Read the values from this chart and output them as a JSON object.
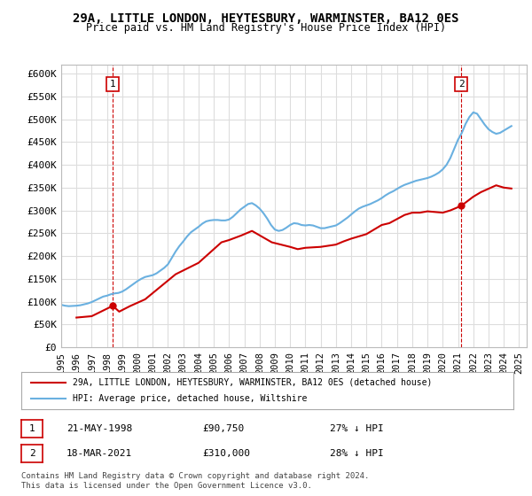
{
  "title": "29A, LITTLE LONDON, HEYTESBURY, WARMINSTER, BA12 0ES",
  "subtitle": "Price paid vs. HM Land Registry's House Price Index (HPI)",
  "ylabel_ticks": [
    "£0",
    "£50K",
    "£100K",
    "£150K",
    "£200K",
    "£250K",
    "£300K",
    "£350K",
    "£400K",
    "£450K",
    "£500K",
    "£550K",
    "£600K"
  ],
  "ytick_values": [
    0,
    50000,
    100000,
    150000,
    200000,
    250000,
    300000,
    350000,
    400000,
    450000,
    500000,
    550000,
    600000
  ],
  "ylim": [
    0,
    620000
  ],
  "xlim_start": 1995.0,
  "xlim_end": 2025.5,
  "xtick_years": [
    1995,
    1996,
    1997,
    1998,
    1999,
    2000,
    2001,
    2002,
    2003,
    2004,
    2005,
    2006,
    2007,
    2008,
    2009,
    2010,
    2011,
    2012,
    2013,
    2014,
    2015,
    2016,
    2017,
    2018,
    2019,
    2020,
    2021,
    2022,
    2023,
    2024,
    2025
  ],
  "hpi_line_color": "#6ab0e0",
  "price_line_color": "#cc0000",
  "dashed_marker_color": "#cc0000",
  "annotation_box_color": "#cc0000",
  "grid_color": "#dddddd",
  "bg_color": "#ffffff",
  "legend_border_color": "#aaaaaa",
  "purchase1_x": 1998.38,
  "purchase1_y": 90750,
  "purchase1_label": "1",
  "purchase2_x": 2021.21,
  "purchase2_y": 310000,
  "purchase2_label": "2",
  "note1_date": "21-MAY-1998",
  "note1_price": "£90,750",
  "note1_hpi": "27% ↓ HPI",
  "note2_date": "18-MAR-2021",
  "note2_price": "£310,000",
  "note2_hpi": "28% ↓ HPI",
  "legend_line1": "29A, LITTLE LONDON, HEYTESBURY, WARMINSTER, BA12 0ES (detached house)",
  "legend_line2": "HPI: Average price, detached house, Wiltshire",
  "footnote": "Contains HM Land Registry data © Crown copyright and database right 2024.\nThis data is licensed under the Open Government Licence v3.0.",
  "hpi_data_x": [
    1995.0,
    1995.25,
    1995.5,
    1995.75,
    1996.0,
    1996.25,
    1996.5,
    1996.75,
    1997.0,
    1997.25,
    1997.5,
    1997.75,
    1998.0,
    1998.25,
    1998.5,
    1998.75,
    1999.0,
    1999.25,
    1999.5,
    1999.75,
    2000.0,
    2000.25,
    2000.5,
    2000.75,
    2001.0,
    2001.25,
    2001.5,
    2001.75,
    2002.0,
    2002.25,
    2002.5,
    2002.75,
    2003.0,
    2003.25,
    2003.5,
    2003.75,
    2004.0,
    2004.25,
    2004.5,
    2004.75,
    2005.0,
    2005.25,
    2005.5,
    2005.75,
    2006.0,
    2006.25,
    2006.5,
    2006.75,
    2007.0,
    2007.25,
    2007.5,
    2007.75,
    2008.0,
    2008.25,
    2008.5,
    2008.75,
    2009.0,
    2009.25,
    2009.5,
    2009.75,
    2010.0,
    2010.25,
    2010.5,
    2010.75,
    2011.0,
    2011.25,
    2011.5,
    2011.75,
    2012.0,
    2012.25,
    2012.5,
    2012.75,
    2013.0,
    2013.25,
    2013.5,
    2013.75,
    2014.0,
    2014.25,
    2014.5,
    2014.75,
    2015.0,
    2015.25,
    2015.5,
    2015.75,
    2016.0,
    2016.25,
    2016.5,
    2016.75,
    2017.0,
    2017.25,
    2017.5,
    2017.75,
    2018.0,
    2018.25,
    2018.5,
    2018.75,
    2019.0,
    2019.25,
    2019.5,
    2019.75,
    2020.0,
    2020.25,
    2020.5,
    2020.75,
    2021.0,
    2021.25,
    2021.5,
    2021.75,
    2022.0,
    2022.25,
    2022.5,
    2022.75,
    2023.0,
    2023.25,
    2023.5,
    2023.75,
    2024.0,
    2024.25,
    2024.5
  ],
  "hpi_data_y": [
    93000,
    91000,
    90000,
    90500,
    91000,
    92000,
    94000,
    96000,
    99000,
    103000,
    107000,
    111000,
    113000,
    116000,
    118000,
    119000,
    122000,
    127000,
    133000,
    139000,
    145000,
    150000,
    154000,
    156000,
    158000,
    162000,
    168000,
    174000,
    182000,
    196000,
    210000,
    222000,
    232000,
    243000,
    252000,
    258000,
    264000,
    271000,
    276000,
    278000,
    279000,
    279000,
    278000,
    278000,
    280000,
    286000,
    294000,
    302000,
    308000,
    314000,
    316000,
    311000,
    304000,
    294000,
    282000,
    268000,
    258000,
    255000,
    257000,
    262000,
    268000,
    272000,
    271000,
    268000,
    267000,
    268000,
    267000,
    264000,
    261000,
    261000,
    263000,
    265000,
    267000,
    272000,
    278000,
    284000,
    291000,
    298000,
    304000,
    308000,
    311000,
    314000,
    318000,
    322000,
    327000,
    333000,
    338000,
    342000,
    347000,
    352000,
    356000,
    359000,
    362000,
    365000,
    367000,
    369000,
    371000,
    374000,
    378000,
    383000,
    390000,
    400000,
    415000,
    435000,
    455000,
    470000,
    490000,
    505000,
    515000,
    512000,
    500000,
    488000,
    478000,
    472000,
    468000,
    470000,
    475000,
    480000,
    485000
  ],
  "price_data_x": [
    1996.0,
    1997.0,
    1998.38,
    1998.8,
    1999.5,
    2000.5,
    2002.5,
    2004.0,
    2004.5,
    2005.5,
    2006.0,
    2006.8,
    2007.5,
    2008.8,
    2010.0,
    2010.5,
    2011.0,
    2012.0,
    2013.0,
    2013.5,
    2014.0,
    2015.0,
    2016.0,
    2016.5,
    2017.5,
    2018.0,
    2018.5,
    2019.0,
    2020.0,
    2020.5,
    2021.21,
    2022.0,
    2022.5,
    2023.5,
    2024.0,
    2024.5
  ],
  "price_data_y": [
    65000,
    68000,
    90750,
    78000,
    90000,
    105000,
    160000,
    185000,
    200000,
    230000,
    235000,
    245000,
    255000,
    230000,
    220000,
    215000,
    218000,
    220000,
    225000,
    232000,
    238000,
    248000,
    268000,
    272000,
    290000,
    295000,
    295000,
    298000,
    295000,
    300000,
    310000,
    330000,
    340000,
    355000,
    350000,
    348000
  ]
}
